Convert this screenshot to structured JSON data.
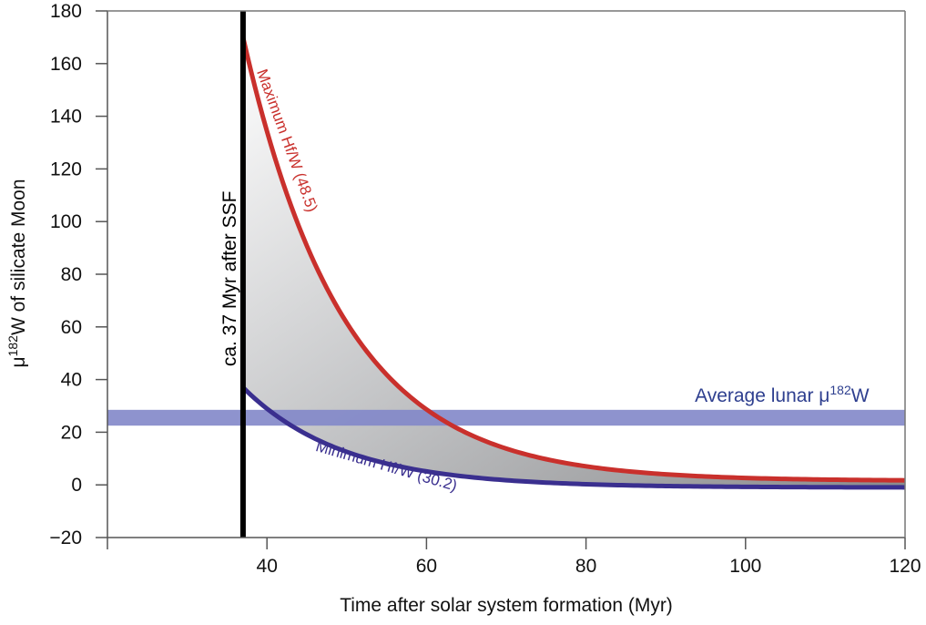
{
  "chart_data": {
    "type": "line",
    "title": "",
    "xlabel": "Time after solar system formation (Myr)",
    "ylabel_prefix": "μ",
    "ylabel_sup": "182",
    "ylabel_suffix": "W of silicate Moon",
    "xlim": [
      20,
      120
    ],
    "ylim": [
      -20,
      180
    ],
    "xticks": [
      20,
      40,
      60,
      80,
      100,
      120
    ],
    "xtick_labels": [
      "",
      "40",
      "60",
      "80",
      "100",
      "120"
    ],
    "yticks": [
      -20,
      0,
      20,
      40,
      60,
      80,
      100,
      120,
      140,
      160,
      180
    ],
    "ytick_labels": [
      "−20",
      "0",
      "20",
      "40",
      "60",
      "80",
      "100",
      "120",
      "140",
      "160",
      "180"
    ],
    "grid": false,
    "series": [
      {
        "name": "Maximum Hf/W (48.5)",
        "color": "#c9302c",
        "start_x": 37,
        "start_y": 170,
        "asymptote": 1.5,
        "decay_constant_myr": 12.6,
        "end_x": 120
      },
      {
        "name": "Minimum Hf/W (30.2)",
        "color": "#3a2f8f",
        "start_x": 37,
        "start_y": 37,
        "asymptote": -1,
        "decay_constant_myr": 12.6,
        "end_x": 120
      }
    ],
    "vertical_line": {
      "x": 37,
      "label": "ca. 37 Myr after SSF",
      "color": "#000000"
    },
    "band": {
      "y_min": 22.5,
      "y_max": 28.5,
      "color": "#8287c9",
      "label_prefix": "Average lunar μ",
      "label_sup": "182",
      "label_suffix": "W",
      "label_color": "#2e3f8f"
    },
    "shaded_region": "between maximum and minimum curves (grey gradient)"
  }
}
